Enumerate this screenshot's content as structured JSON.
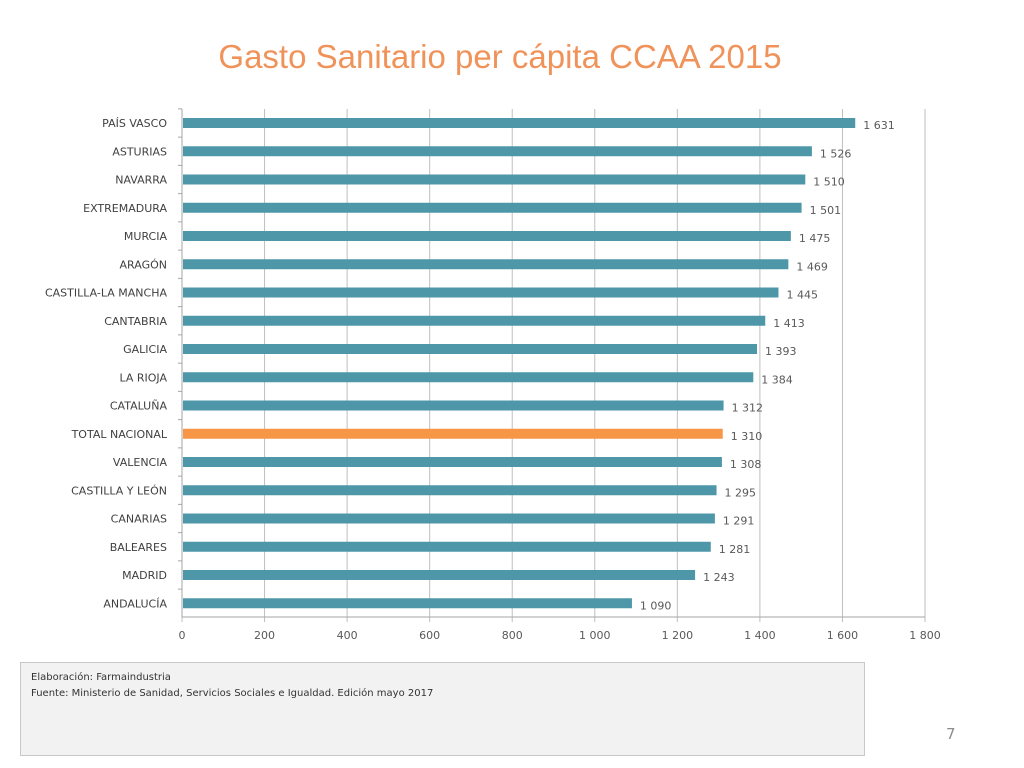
{
  "page": {
    "title": "Gasto Sanitario per cápita CCAA 2015",
    "page_number": "7"
  },
  "source": {
    "line1": "Elaboración: Farmaindustria",
    "line2": "Fuente: Ministerio de Sanidad, Servicios Sociales e Igualdad. Edición mayo 2017"
  },
  "colors": {
    "bar": "#4e97a8",
    "highlight": "#f79646",
    "title": "#f0935a"
  },
  "chart_data": {
    "type": "bar",
    "orientation": "horizontal",
    "title": "Gasto Sanitario per cápita CCAA 2015",
    "xlabel": "",
    "ylabel": "",
    "xlim": [
      0,
      1800
    ],
    "grid": "vertical",
    "legend": "none",
    "highlight_category": "TOTAL NACIONAL",
    "categories": [
      "PAÍS VASCO",
      "ASTURIAS",
      "NAVARRA",
      "EXTREMADURA",
      "MURCIA",
      "ARAGÓN",
      "CASTILLA-LA MANCHA",
      "CANTABRIA",
      "GALICIA",
      "LA RIOJA",
      "CATALUÑA",
      "TOTAL NACIONAL",
      "VALENCIA",
      "CASTILLA Y LEÓN",
      "CANARIAS",
      "BALEARES",
      "MADRID",
      "ANDALUCÍA"
    ],
    "values": [
      1631,
      1526,
      1510,
      1501,
      1475,
      1469,
      1445,
      1413,
      1393,
      1384,
      1312,
      1310,
      1308,
      1295,
      1291,
      1281,
      1243,
      1090
    ],
    "value_labels": [
      "1 631",
      "1 526",
      "1 510",
      "1 501",
      "1 475",
      "1 469",
      "1 445",
      "1 413",
      "1 393",
      "1 384",
      "1 312",
      "1 310",
      "1 308",
      "1 295",
      "1 291",
      "1 281",
      "1 243",
      "1 090"
    ],
    "ticks": [
      0,
      200,
      400,
      600,
      800,
      1000,
      1200,
      1400,
      1600,
      1800
    ],
    "tick_labels": [
      "0",
      "200",
      "400",
      "600",
      "800",
      "1 000",
      "1 200",
      "1 400",
      "1 600",
      "1 800"
    ]
  }
}
